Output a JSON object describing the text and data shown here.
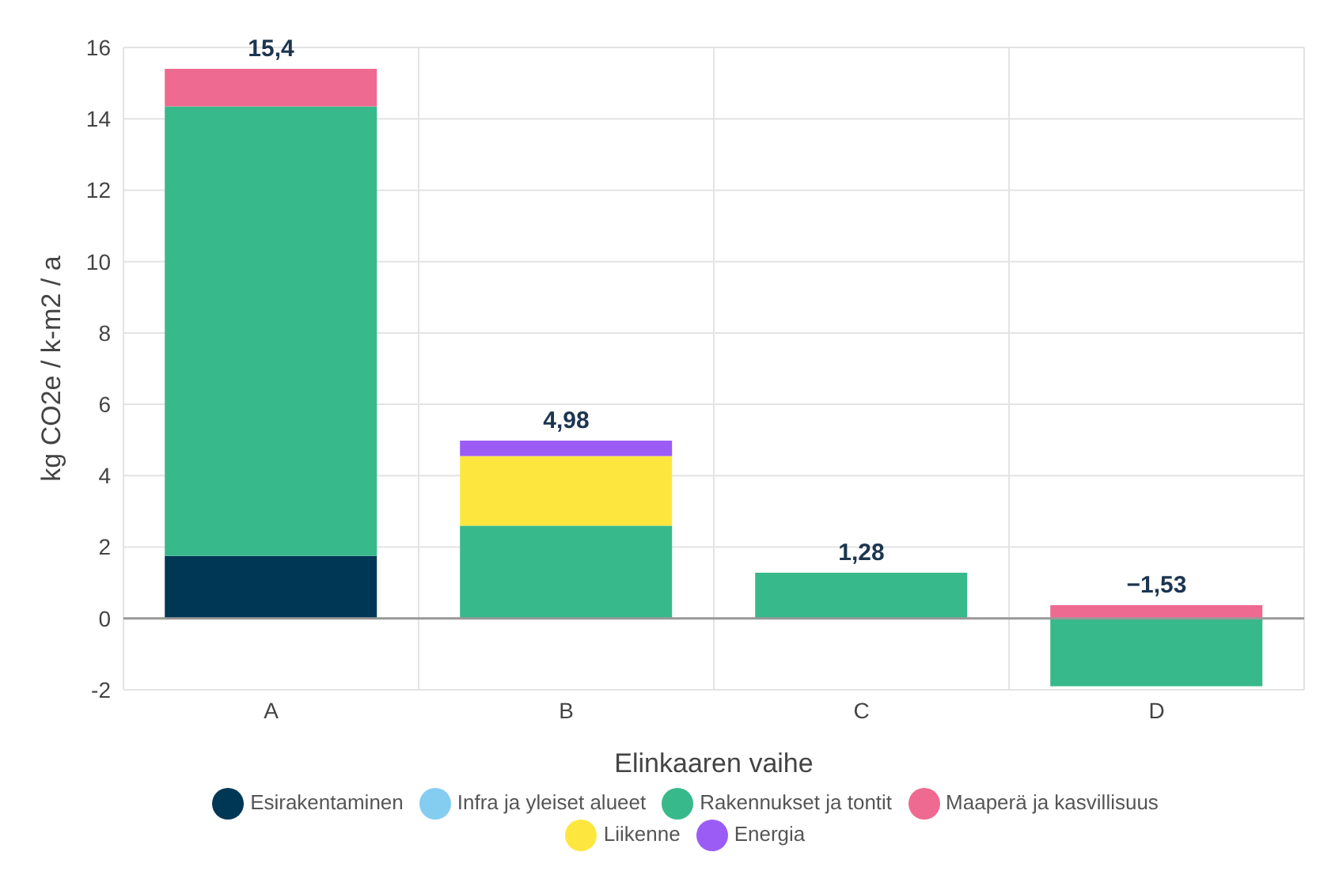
{
  "chart_data": {
    "type": "bar",
    "stacked": true,
    "xlabel": "Elinkaaren vaihe",
    "ylabel": "kg CO2e / k-m2 / a",
    "categories": [
      "A",
      "B",
      "C",
      "D"
    ],
    "series": [
      {
        "name": "Esirakentaminen",
        "color": "#003755",
        "values": [
          1.75,
          null,
          null,
          null
        ]
      },
      {
        "name": "Infra ja yleiset alueet",
        "color": "#84cdf1",
        "values": [
          null,
          null,
          null,
          null
        ]
      },
      {
        "name": "Rakennukset ja tontit",
        "color": "#37b98b",
        "values": [
          12.6,
          2.6,
          1.28,
          -1.9
        ]
      },
      {
        "name": "Maaperä ja kasvillisuus",
        "color": "#ee6a91",
        "values": [
          1.05,
          null,
          null,
          0.37
        ]
      },
      {
        "name": "Liikenne",
        "color": "#fde73f",
        "values": [
          null,
          1.95,
          null,
          null
        ]
      },
      {
        "name": "Energia",
        "color": "#9b5cf5",
        "values": [
          null,
          0.43,
          null,
          null
        ]
      }
    ],
    "totals": [
      "15,4",
      "4,98",
      "1,28",
      "−1,53"
    ],
    "ylim": [
      -2,
      16
    ],
    "yticks": [
      -2,
      0,
      2,
      4,
      6,
      8,
      10,
      12,
      14,
      16
    ],
    "grid": true,
    "legend": "bottom"
  }
}
